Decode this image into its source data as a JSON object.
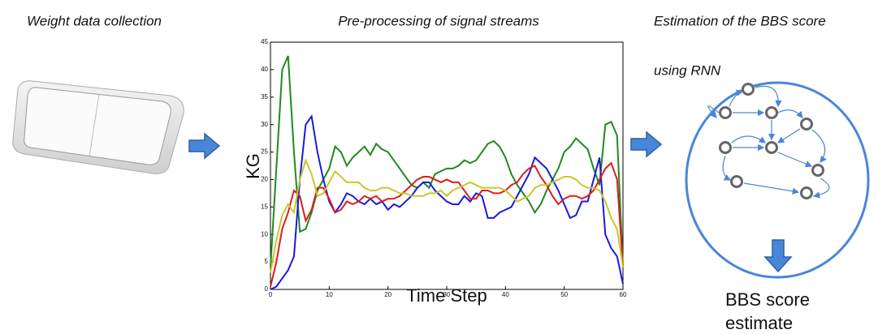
{
  "headings": {
    "collection": "Weight data collection",
    "preprocessing": "Pre-processing of signal streams",
    "estimation_line1": "Estimation of the BBS score",
    "estimation_line2": "using RNN"
  },
  "output": {
    "line1": "BBS score",
    "line2": "estimate"
  },
  "chart_data": {
    "type": "line",
    "xlabel": "Time Step",
    "ylabel": "KG",
    "x": [
      0,
      1,
      2,
      3,
      4,
      5,
      6,
      7,
      8,
      9,
      10,
      11,
      12,
      13,
      14,
      15,
      16,
      17,
      18,
      19,
      20,
      21,
      22,
      23,
      24,
      25,
      26,
      27,
      28,
      29,
      30,
      31,
      32,
      33,
      34,
      35,
      36,
      37,
      38,
      39,
      40,
      41,
      42,
      43,
      44,
      45,
      46,
      47,
      48,
      49,
      50,
      51,
      52,
      53,
      54,
      55,
      56,
      57,
      58,
      59,
      60
    ],
    "series": [
      {
        "color": "#1f8a1f",
        "values": [
          4,
          22,
          40,
          42.5,
          25,
          10.5,
          11,
          14,
          18,
          20,
          22,
          26,
          25,
          22.5,
          24,
          25,
          26,
          24.5,
          26.5,
          25.5,
          25,
          23.5,
          22,
          20.5,
          19,
          18.5,
          19.5,
          18.5,
          21,
          21.5,
          22,
          22,
          22.5,
          23.5,
          23,
          23.5,
          25,
          26.5,
          27,
          26,
          24,
          21,
          19,
          17.5,
          16,
          14,
          15.5,
          18,
          20,
          22,
          25,
          26,
          27.5,
          26.5,
          25.5,
          22,
          19,
          30,
          30.5,
          28,
          4
        ]
      },
      {
        "color": "#1a1adf",
        "values": [
          0,
          0.5,
          2,
          3.5,
          6,
          20,
          30,
          31.5,
          25,
          20,
          16,
          14,
          15.5,
          17.5,
          17,
          16,
          15.5,
          16.5,
          15.5,
          16,
          14.5,
          15.5,
          15,
          16,
          17,
          18.5,
          19.5,
          19.5,
          18,
          17,
          16,
          15.5,
          15.5,
          17,
          16,
          17.5,
          17,
          13,
          13,
          14,
          14.5,
          15,
          17,
          19,
          21,
          24,
          23,
          22,
          20,
          18,
          15.5,
          13,
          13.5,
          16,
          16,
          20,
          24,
          10,
          7.5,
          6,
          1
        ]
      },
      {
        "color": "#e01c1c",
        "values": [
          0.5,
          5,
          11,
          14,
          18,
          17,
          12.5,
          14.5,
          18.5,
          18.5,
          16.5,
          14,
          14.5,
          16,
          15.5,
          16,
          17,
          16.5,
          17,
          16,
          16.5,
          16.5,
          17,
          18,
          19,
          20,
          20.5,
          20.5,
          20,
          19.5,
          20,
          19.5,
          19.5,
          18,
          16.5,
          16.5,
          18,
          18,
          17.5,
          17.5,
          18,
          19,
          19.5,
          21,
          22,
          22.5,
          20.5,
          19,
          17,
          15.5,
          16.5,
          17,
          17,
          16.5,
          17,
          18,
          20,
          22,
          23,
          20,
          4
        ]
      },
      {
        "color": "#c8c82a",
        "values": [
          3,
          9,
          13.5,
          15.5,
          14,
          20,
          23.5,
          21,
          17,
          17.5,
          19.5,
          21.5,
          20.5,
          19.5,
          19.5,
          19.5,
          18.5,
          18,
          18,
          18.5,
          18.5,
          18,
          17.5,
          17.5,
          17,
          17,
          17,
          17.5,
          17.5,
          18,
          17,
          18,
          18.5,
          19,
          19.5,
          19,
          18.5,
          18.5,
          18.5,
          18.5,
          18,
          17,
          16,
          16.5,
          17,
          18.5,
          19,
          19,
          19.5,
          20,
          20.5,
          20.5,
          20,
          19,
          18.5,
          18.5,
          18,
          16,
          13,
          11,
          4
        ]
      }
    ],
    "xlim": [
      0,
      60
    ],
    "ylim": [
      0,
      45
    ],
    "xticks": [
      0,
      10,
      20,
      30,
      40,
      50,
      60
    ],
    "yticks": [
      0,
      5,
      10,
      15,
      20,
      25,
      30,
      35,
      40,
      45
    ]
  }
}
